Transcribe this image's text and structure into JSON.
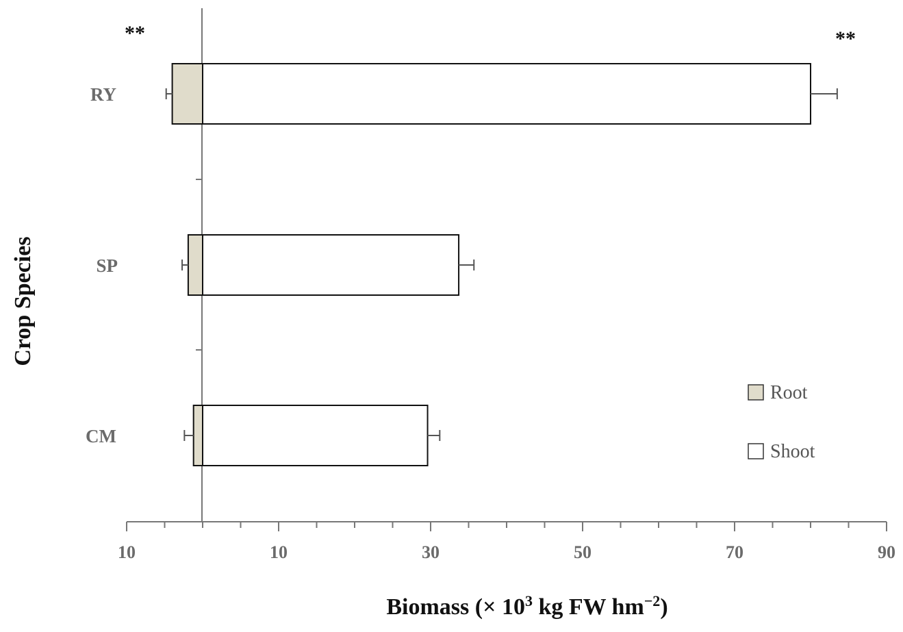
{
  "chart_data": {
    "type": "bar",
    "orientation": "horizontal",
    "stacked_diverging": true,
    "ylabel": "Crop Species",
    "xlabel_main": "Biomass (",
    "xlabel_times": "×",
    "xlabel_base": " 10",
    "xlabel_exp": "3",
    "xlabel_unit": " kg FW hm",
    "xlabel_exp2": "−2",
    "xlabel_close": ")",
    "categories": [
      "RY",
      "SP",
      "CM"
    ],
    "x_ticks": [
      "10",
      "10",
      "30",
      "50",
      "70",
      "90"
    ],
    "xlim": [
      -10,
      90
    ],
    "series": [
      {
        "name": "Root",
        "values": [
          4.0,
          1.9,
          1.2
        ],
        "errors": [
          0.8,
          0.8,
          1.2
        ],
        "color": "#e0dccb"
      },
      {
        "name": "Shoot",
        "values": [
          80.0,
          33.7,
          29.6
        ],
        "errors": [
          3.5,
          2.0,
          1.6
        ],
        "color": "#ffffff"
      }
    ],
    "annotations": [
      {
        "text": "**",
        "position": "top-left"
      },
      {
        "text": "**",
        "position": "top-right"
      }
    ],
    "legend_position": "lower-right",
    "grid": false
  }
}
